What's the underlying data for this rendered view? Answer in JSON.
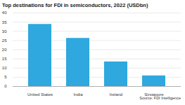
{
  "chart_data": {
    "type": "bar",
    "title": "Top destinations for FDI in semiconductors, 2022 (USDbn)",
    "source": "Source: FDI Intelligence",
    "categories": [
      "United States",
      "India",
      "Ireland",
      "Singapore"
    ],
    "values": [
      33.8,
      26.2,
      13.4,
      5.8
    ],
    "color": "#2ea8df",
    "ylim": [
      0,
      40
    ],
    "yticks": [
      0,
      5,
      10,
      15,
      20,
      25,
      30,
      35,
      40
    ],
    "grid": true
  }
}
